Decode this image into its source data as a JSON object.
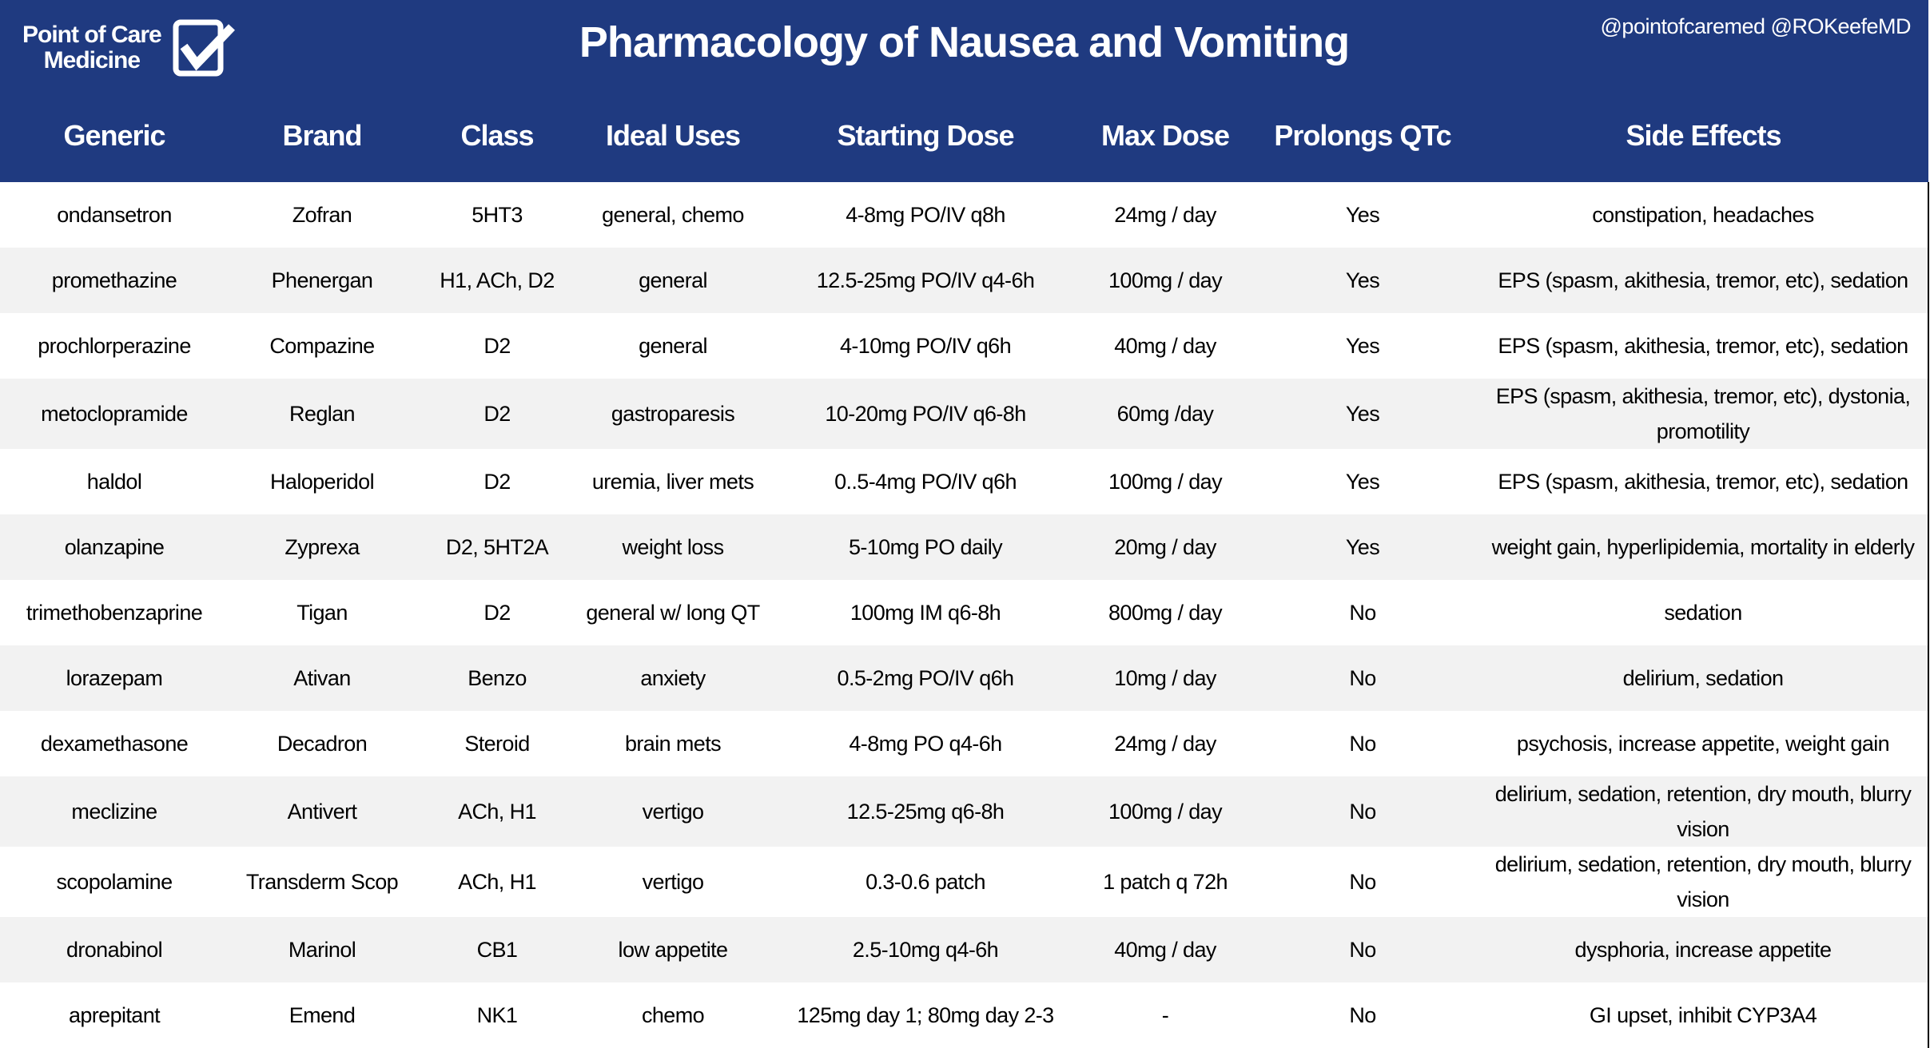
{
  "header": {
    "logo_line1": "Point of Care",
    "logo_line2": "Medicine",
    "title": "Pharmacology of Nausea and Vomiting",
    "handles": "@pointofcaremed  @ROKeefeMD",
    "color": "#1F3A80"
  },
  "columns": [
    "Generic",
    "Brand",
    "Class",
    "Ideal Uses",
    "Starting Dose",
    "Max Dose",
    "Prolongs QTc",
    "Side Effects"
  ],
  "rows": [
    [
      "ondansetron",
      "Zofran",
      "5HT3",
      "general, chemo",
      "4-8mg PO/IV q8h",
      "24mg / day",
      "Yes",
      "constipation, headaches"
    ],
    [
      "promethazine",
      "Phenergan",
      "H1, ACh, D2",
      "general",
      "12.5-25mg PO/IV q4-6h",
      "100mg / day",
      "Yes",
      "EPS (spasm, akithesia, tremor, etc), sedation"
    ],
    [
      "prochlorperazine",
      "Compazine",
      "D2",
      "general",
      "4-10mg PO/IV q6h",
      "40mg / day",
      "Yes",
      "EPS (spasm, akithesia, tremor, etc), sedation"
    ],
    [
      "metoclopramide",
      "Reglan",
      "D2",
      "gastroparesis",
      "10-20mg PO/IV q6-8h",
      "60mg /day",
      "Yes",
      "EPS (spasm, akithesia, tremor, etc), dystonia, promotility"
    ],
    [
      "haldol",
      "Haloperidol",
      "D2",
      "uremia, liver mets",
      "0..5-4mg PO/IV q6h",
      "100mg / day",
      "Yes",
      "EPS (spasm, akithesia, tremor, etc), sedation"
    ],
    [
      "olanzapine",
      "Zyprexa",
      "D2, 5HT2A",
      "weight loss",
      "5-10mg PO daily",
      "20mg / day",
      "Yes",
      "weight gain, hyperlipidemia, mortality in elderly"
    ],
    [
      "trimethobenzaprine",
      "Tigan",
      "D2",
      "general w/ long QT",
      "100mg IM q6-8h",
      "800mg / day",
      "No",
      "sedation"
    ],
    [
      "lorazepam",
      "Ativan",
      "Benzo",
      "anxiety",
      "0.5-2mg PO/IV q6h",
      "10mg / day",
      "No",
      "delirium, sedation"
    ],
    [
      "dexamethasone",
      "Decadron",
      "Steroid",
      "brain mets",
      "4-8mg PO q4-6h",
      "24mg / day",
      "No",
      "psychosis, increase appetite, weight gain"
    ],
    [
      "meclizine",
      "Antivert",
      "ACh, H1",
      "vertigo",
      "12.5-25mg q6-8h",
      "100mg / day",
      "No",
      "delirium, sedation, retention, dry mouth, blurry vision"
    ],
    [
      "scopolamine",
      "Transderm Scop",
      "ACh, H1",
      "vertigo",
      "0.3-0.6 patch",
      "1 patch q 72h",
      "No",
      "delirium, sedation, retention, dry mouth, blurry vision"
    ],
    [
      "dronabinol",
      "Marinol",
      "CB1",
      "low appetite",
      "2.5-10mg q4-6h",
      "40mg / day",
      "No",
      "dysphoria, increase appetite"
    ],
    [
      "aprepitant",
      "Emend",
      "NK1",
      "chemo",
      "125mg day 1; 80mg day 2-3",
      "-",
      "No",
      "GI upset, inhibit CYP3A4"
    ]
  ]
}
